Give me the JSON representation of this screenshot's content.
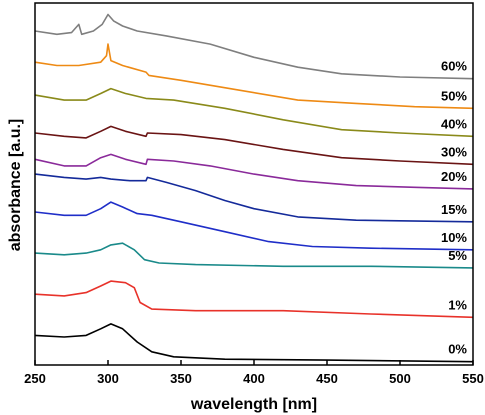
{
  "chart_data": {
    "type": "line",
    "xlabel": "wavelength [nm]",
    "ylabel": "absorbance [a.u.]",
    "xlim": [
      250,
      550
    ],
    "x_ticks": [
      "250",
      "300",
      "350",
      "400",
      "450",
      "500",
      "550"
    ],
    "y_ticks_shown": false,
    "grid": false,
    "legend": "none (series labels placed at right end of each curve)",
    "series": [
      {
        "name": "0%",
        "color": "#000000",
        "points": [
          [
            250,
            0.18
          ],
          [
            270,
            0.17
          ],
          [
            285,
            0.18
          ],
          [
            295,
            0.22
          ],
          [
            302,
            0.25
          ],
          [
            310,
            0.22
          ],
          [
            320,
            0.14
          ],
          [
            330,
            0.08
          ],
          [
            345,
            0.05
          ],
          [
            380,
            0.035
          ],
          [
            450,
            0.03
          ],
          [
            550,
            0.02
          ]
        ]
      },
      {
        "name": "1%",
        "color": "#e8322a",
        "points": [
          [
            250,
            0.43
          ],
          [
            270,
            0.42
          ],
          [
            285,
            0.44
          ],
          [
            295,
            0.48
          ],
          [
            302,
            0.51
          ],
          [
            312,
            0.5
          ],
          [
            318,
            0.47
          ],
          [
            322,
            0.38
          ],
          [
            330,
            0.34
          ],
          [
            360,
            0.33
          ],
          [
            420,
            0.33
          ],
          [
            480,
            0.31
          ],
          [
            550,
            0.29
          ]
        ]
      },
      {
        "name": "5%",
        "color": "#1a8a8a",
        "points": [
          [
            250,
            0.68
          ],
          [
            270,
            0.67
          ],
          [
            285,
            0.68
          ],
          [
            295,
            0.7
          ],
          [
            302,
            0.73
          ],
          [
            310,
            0.74
          ],
          [
            318,
            0.7
          ],
          [
            325,
            0.64
          ],
          [
            335,
            0.62
          ],
          [
            360,
            0.61
          ],
          [
            420,
            0.6
          ],
          [
            480,
            0.6
          ],
          [
            550,
            0.59
          ]
        ]
      },
      {
        "name": "10%",
        "color": "#1f2ec8",
        "points": [
          [
            250,
            0.93
          ],
          [
            270,
            0.91
          ],
          [
            285,
            0.91
          ],
          [
            295,
            0.95
          ],
          [
            302,
            0.99
          ],
          [
            310,
            0.96
          ],
          [
            320,
            0.92
          ],
          [
            330,
            0.91
          ],
          [
            350,
            0.87
          ],
          [
            380,
            0.81
          ],
          [
            410,
            0.75
          ],
          [
            440,
            0.72
          ],
          [
            480,
            0.71
          ],
          [
            550,
            0.7
          ]
        ]
      },
      {
        "name": "15%",
        "color": "#142a9a",
        "points": [
          [
            250,
            1.16
          ],
          [
            270,
            1.14
          ],
          [
            285,
            1.13
          ],
          [
            295,
            1.14
          ],
          [
            302,
            1.13
          ],
          [
            315,
            1.12
          ],
          [
            326,
            1.12
          ],
          [
            327,
            1.14
          ],
          [
            340,
            1.11
          ],
          [
            360,
            1.06
          ],
          [
            380,
            1.0
          ],
          [
            400,
            0.95
          ],
          [
            430,
            0.9
          ],
          [
            470,
            0.88
          ],
          [
            550,
            0.87
          ]
        ]
      },
      {
        "name": "20%",
        "color": "#8a2a9a",
        "points": [
          [
            250,
            1.25
          ],
          [
            270,
            1.21
          ],
          [
            285,
            1.21
          ],
          [
            295,
            1.26
          ],
          [
            302,
            1.28
          ],
          [
            312,
            1.25
          ],
          [
            326,
            1.22
          ],
          [
            327,
            1.25
          ],
          [
            345,
            1.24
          ],
          [
            370,
            1.21
          ],
          [
            400,
            1.16
          ],
          [
            430,
            1.12
          ],
          [
            470,
            1.09
          ],
          [
            510,
            1.08
          ],
          [
            550,
            1.07
          ]
        ]
      },
      {
        "name": "30%",
        "color": "#6a1414",
        "points": [
          [
            250,
            1.41
          ],
          [
            270,
            1.39
          ],
          [
            285,
            1.38
          ],
          [
            295,
            1.42
          ],
          [
            302,
            1.45
          ],
          [
            312,
            1.42
          ],
          [
            326,
            1.39
          ],
          [
            327,
            1.41
          ],
          [
            350,
            1.4
          ],
          [
            380,
            1.37
          ],
          [
            420,
            1.31
          ],
          [
            460,
            1.26
          ],
          [
            500,
            1.24
          ],
          [
            550,
            1.22
          ]
        ]
      },
      {
        "name": "40%",
        "color": "#8a8a1a",
        "points": [
          [
            250,
            1.64
          ],
          [
            270,
            1.61
          ],
          [
            285,
            1.61
          ],
          [
            295,
            1.65
          ],
          [
            302,
            1.68
          ],
          [
            312,
            1.65
          ],
          [
            326,
            1.62
          ],
          [
            345,
            1.61
          ],
          [
            380,
            1.56
          ],
          [
            420,
            1.49
          ],
          [
            460,
            1.43
          ],
          [
            500,
            1.41
          ],
          [
            550,
            1.39
          ]
        ]
      },
      {
        "name": "50%",
        "color": "#ee8a14",
        "points": [
          [
            250,
            1.84
          ],
          [
            265,
            1.82
          ],
          [
            280,
            1.82
          ],
          [
            295,
            1.84
          ],
          [
            299,
            1.88
          ],
          [
            300,
            1.95
          ],
          [
            302,
            1.85
          ],
          [
            310,
            1.82
          ],
          [
            326,
            1.78
          ],
          [
            328,
            1.76
          ],
          [
            350,
            1.73
          ],
          [
            390,
            1.67
          ],
          [
            430,
            1.61
          ],
          [
            470,
            1.59
          ],
          [
            510,
            1.57
          ],
          [
            550,
            1.56
          ]
        ]
      },
      {
        "name": "60%",
        "color": "#7f7f7f",
        "points": [
          [
            250,
            2.03
          ],
          [
            265,
            2.01
          ],
          [
            275,
            2.02
          ],
          [
            280,
            2.07
          ],
          [
            282,
            2.01
          ],
          [
            290,
            2.03
          ],
          [
            296,
            2.07
          ],
          [
            300,
            2.13
          ],
          [
            304,
            2.09
          ],
          [
            310,
            2.06
          ],
          [
            320,
            2.03
          ],
          [
            340,
            2.0
          ],
          [
            370,
            1.95
          ],
          [
            400,
            1.87
          ],
          [
            430,
            1.81
          ],
          [
            460,
            1.77
          ],
          [
            500,
            1.75
          ],
          [
            550,
            1.74
          ]
        ]
      }
    ]
  }
}
